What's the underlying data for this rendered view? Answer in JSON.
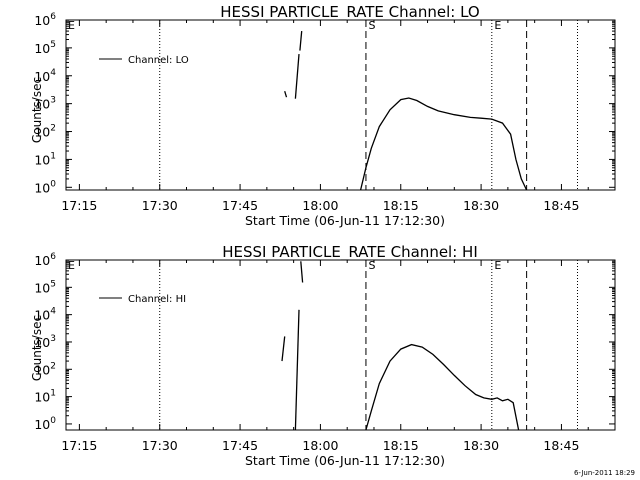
{
  "footer": {
    "timestamp": "6-Jun-2011 18:29"
  },
  "chart_data": [
    {
      "type": "line",
      "title": "HESSI PARTICLE_RATE Channel: LO",
      "xlabel": "Start Time (06-Jun-11 17:12:30)",
      "ylabel": "Counts/sec",
      "yscale": "log",
      "xlim": [
        "17:12:30",
        "18:55:00"
      ],
      "ylim": [
        0.8,
        1000000
      ],
      "x_ticks": [
        "17:15",
        "17:30",
        "17:45",
        "18:00",
        "18:15",
        "18:30",
        "18:45"
      ],
      "y_ticks": [
        "10^0",
        "10^1",
        "10^2",
        "10^3",
        "10^4",
        "10^5",
        "10^6"
      ],
      "legend": {
        "label": "Channel: LO",
        "placement": "top-left"
      },
      "markers": [
        {
          "time": "18:08:30",
          "label": "S",
          "style": "dashed"
        },
        {
          "time": "18:32:00",
          "label": "E",
          "style": "dotted"
        }
      ],
      "vlines_dotted": [
        "17:30",
        "18:32",
        "18:48"
      ],
      "vlines_dashed": [
        "18:08:30",
        "18:38:30"
      ],
      "series": [
        {
          "x": [
            "17:53:20",
            "17:53:40"
          ],
          "y": [
            2800,
            1700
          ]
        },
        {
          "x": [
            "17:55:20",
            "17:56:00"
          ],
          "y": [
            1500,
            60000
          ]
        },
        {
          "x": [
            "17:56:10",
            "17:56:30"
          ],
          "y": [
            80000,
            400000
          ]
        },
        {
          "x": [
            "18:07:30",
            "18:08:30",
            "18:09:30",
            "18:11:00",
            "18:13:00",
            "18:15:00",
            "18:16:30",
            "18:18:00",
            "18:20:00",
            "18:22:00",
            "18:25:00",
            "18:28:00",
            "18:30:00",
            "18:32:00",
            "18:34:00",
            "18:35:30",
            "18:36:30",
            "18:37:30",
            "18:38:30"
          ],
          "y": [
            0.8,
            5,
            25,
            150,
            600,
            1400,
            1600,
            1300,
            800,
            550,
            400,
            320,
            300,
            280,
            200,
            80,
            10,
            2,
            0.8
          ]
        }
      ]
    },
    {
      "type": "line",
      "title": "HESSI PARTICLE_RATE Channel: HI",
      "xlabel": "Start Time (06-Jun-11 17:12:30)",
      "ylabel": "Counts/sec",
      "yscale": "log",
      "xlim": [
        "17:12:30",
        "18:55:00"
      ],
      "ylim": [
        0.6,
        1000000
      ],
      "x_ticks": [
        "17:15",
        "17:30",
        "17:45",
        "18:00",
        "18:15",
        "18:30",
        "18:45"
      ],
      "y_ticks": [
        "10^0",
        "10^1",
        "10^2",
        "10^3",
        "10^4",
        "10^5",
        "10^6"
      ],
      "legend": {
        "label": "Channel: HI",
        "placement": "top-left"
      },
      "markers": [
        {
          "time": "18:08:30",
          "label": "S",
          "style": "dashed"
        },
        {
          "time": "18:32:00",
          "label": "E",
          "style": "dotted"
        }
      ],
      "vlines_dotted": [
        "17:30",
        "18:32",
        "18:48"
      ],
      "vlines_dashed": [
        "18:08:30",
        "18:38:30"
      ],
      "series": [
        {
          "x": [
            "17:52:50",
            "17:53:20"
          ],
          "y": [
            200,
            1600
          ]
        },
        {
          "x": [
            "17:55:20",
            "17:56:00"
          ],
          "y": [
            0.6,
            15000
          ]
        },
        {
          "x": [
            "17:56:20",
            "17:56:40"
          ],
          "y": [
            900000,
            150000
          ]
        },
        {
          "x": [
            "18:08:30",
            "18:09:30",
            "18:11:00",
            "18:13:00",
            "18:15:00",
            "18:17:00",
            "18:19:00",
            "18:21:00",
            "18:23:00",
            "18:25:00",
            "18:27:00",
            "18:29:00",
            "18:30:30",
            "18:32:00",
            "18:33:00",
            "18:34:00",
            "18:35:00",
            "18:36:00",
            "18:37:00"
          ],
          "y": [
            0.6,
            3,
            30,
            200,
            550,
            800,
            650,
            350,
            150,
            60,
            25,
            12,
            9,
            8,
            9,
            7,
            8,
            6,
            0.6
          ]
        }
      ]
    }
  ]
}
